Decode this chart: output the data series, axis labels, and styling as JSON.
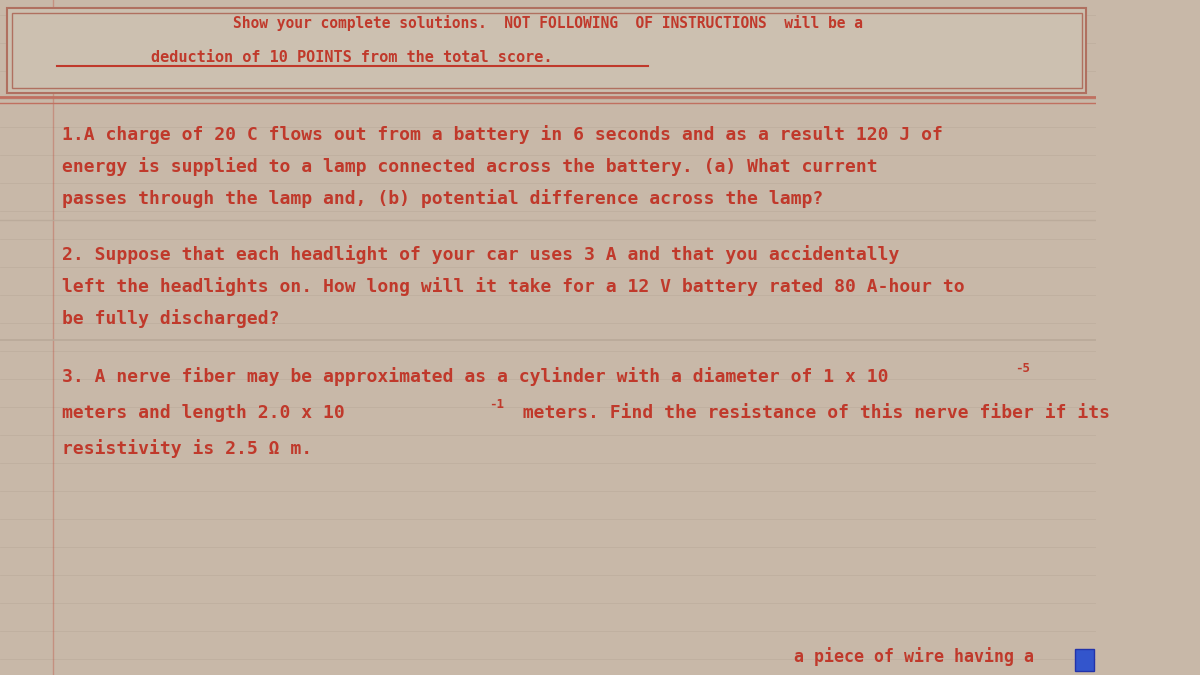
{
  "bg_color": "#c8b8a8",
  "paper_color": "#d0c4b8",
  "line_color": "#b8a898",
  "text_color": "#c0392b",
  "figsize": [
    12.0,
    6.75
  ],
  "dpi": 100,
  "header_text_top": "Show your complete solutions.  NOT FOLLOWING  OF INSTRUCTIONS  will be a",
  "header_text_underline": "deduction of 10 POINTS from the total score.",
  "q1_line1": "1.A charge of 20 C flows out from a battery in 6 seconds and as a result 120 J of",
  "q1_line2": "energy is supplied to a lamp connected across the battery. (a) What current",
  "q1_line3": "passes through the lamp and, (b) potential difference across the lamp?",
  "q2_line1": "2. Suppose that each headlight of your car uses 3 A and that you accidentally",
  "q2_line2": "left the headlights on. How long will it take for a 12 V battery rated 80 A-hour to",
  "q2_line3": "be fully discharged?",
  "q3_line1": "3. A nerve fiber may be approximated as a cylinder with a diameter of 1 x 10",
  "q3_exp1": "-5",
  "q3_line2": "meters and length 2.0 x 10",
  "q3_exp2": "-1",
  "q3_line2b": "  meters. Find the resistance of this nerve fiber if its",
  "q3_line3": "resistivity is 2.5 Ω m.",
  "bottom_text": "a piece of wire having a",
  "blue_box_color": "#3355cc"
}
